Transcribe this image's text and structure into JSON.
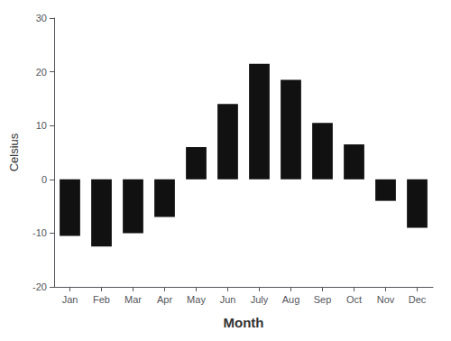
{
  "chart_data": {
    "type": "bar",
    "categories": [
      "Jan",
      "Feb",
      "Mar",
      "Apr",
      "May",
      "Jun",
      "July",
      "Aug",
      "Sep",
      "Oct",
      "Nov",
      "Dec"
    ],
    "values": [
      -10.5,
      -12.5,
      -10.0,
      -7.0,
      6.0,
      14.0,
      21.5,
      18.5,
      10.5,
      6.5,
      -4.0,
      -9.0
    ],
    "color": "#111111",
    "xlabel": "Month",
    "ylabel": "Celsius",
    "ylim": [
      -20,
      30
    ],
    "yticks": [
      -20,
      -10,
      0,
      10,
      20,
      30
    ],
    "grid": false
  }
}
